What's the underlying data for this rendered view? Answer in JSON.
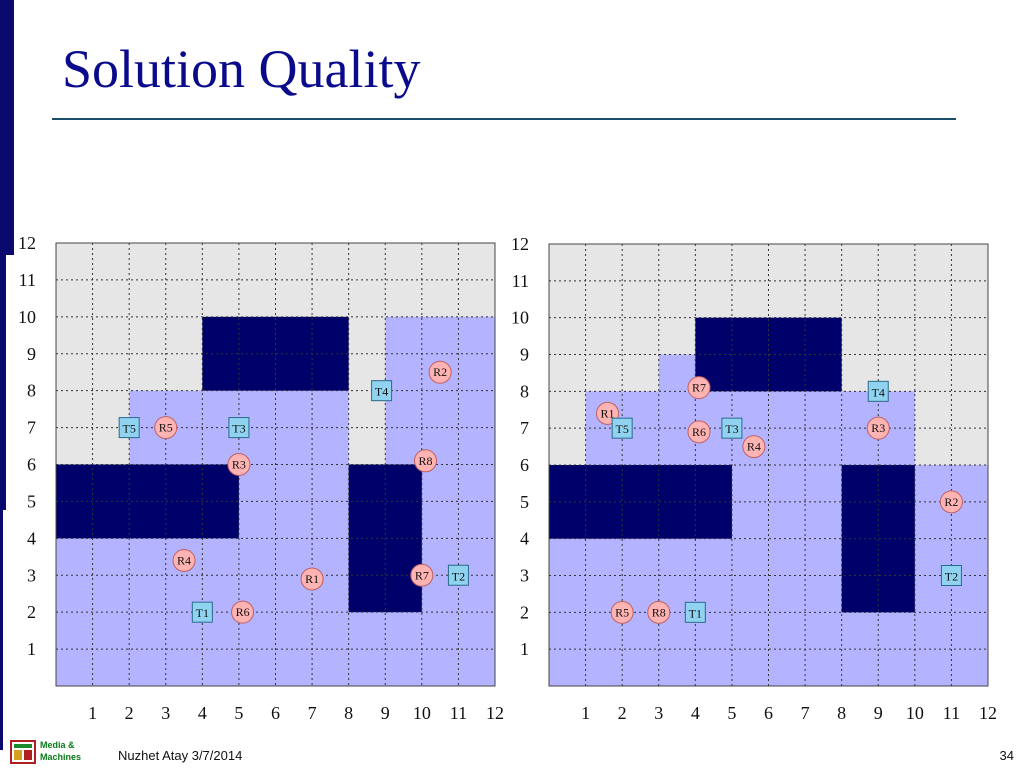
{
  "slide": {
    "title": "Solution Quality",
    "footer_brand_line1": "Media &",
    "footer_brand_line2": "Machines",
    "footer_author": "Nuzhet Atay  3/7/2014",
    "page_number": "34"
  },
  "colors": {
    "background": "#e6e6e6",
    "region": "#b3b3ff",
    "obstacle": "#00006b",
    "robot_fill": "#ffb3b3",
    "robot_stroke": "#c06060",
    "task_fill": "#8fd3f0",
    "task_stroke": "#2a6a8a"
  },
  "axis_labels": [
    "1",
    "2",
    "3",
    "4",
    "5",
    "6",
    "7",
    "8",
    "9",
    "10",
    "11",
    "12"
  ],
  "panels": [
    {
      "id": "left",
      "regions": [
        {
          "x1": 0,
          "y1": 0,
          "x2": 12,
          "y2": 4
        },
        {
          "x1": 0,
          "y1": 4,
          "x2": 8,
          "y2": 6
        },
        {
          "x1": 2,
          "y1": 6,
          "x2": 8,
          "y2": 8
        },
        {
          "x1": 9,
          "y1": 4,
          "x2": 12,
          "y2": 10
        }
      ],
      "obstacles": [
        {
          "x1": 4,
          "y1": 8,
          "x2": 8,
          "y2": 10
        },
        {
          "x1": 0,
          "y1": 4,
          "x2": 5,
          "y2": 6
        },
        {
          "x1": 8,
          "y1": 2,
          "x2": 10,
          "y2": 6
        }
      ],
      "robots": [
        {
          "label": "R1",
          "x": 7,
          "y": 2.9
        },
        {
          "label": "R2",
          "x": 10.5,
          "y": 8.5
        },
        {
          "label": "R3",
          "x": 5,
          "y": 6
        },
        {
          "label": "R4",
          "x": 3.5,
          "y": 3.4
        },
        {
          "label": "R5",
          "x": 3,
          "y": 7
        },
        {
          "label": "R6",
          "x": 5.1,
          "y": 2
        },
        {
          "label": "R7",
          "x": 10,
          "y": 3
        },
        {
          "label": "R8",
          "x": 10.1,
          "y": 6.1
        }
      ],
      "tasks": [
        {
          "label": "T1",
          "x": 4,
          "y": 2
        },
        {
          "label": "T2",
          "x": 11,
          "y": 3
        },
        {
          "label": "T3",
          "x": 5,
          "y": 7
        },
        {
          "label": "T4",
          "x": 8.9,
          "y": 8
        },
        {
          "label": "T5",
          "x": 2,
          "y": 7
        }
      ]
    },
    {
      "id": "right",
      "regions": [
        {
          "x1": 0,
          "y1": 0,
          "x2": 12,
          "y2": 4
        },
        {
          "x1": 1,
          "y1": 4,
          "x2": 8,
          "y2": 8
        },
        {
          "x1": 3,
          "y1": 8,
          "x2": 4,
          "y2": 9
        },
        {
          "x1": 8,
          "y1": 4,
          "x2": 10,
          "y2": 8
        },
        {
          "x1": 10,
          "y1": 0,
          "x2": 12,
          "y2": 6
        }
      ],
      "obstacles": [
        {
          "x1": 4,
          "y1": 8,
          "x2": 8,
          "y2": 10
        },
        {
          "x1": 0,
          "y1": 4,
          "x2": 5,
          "y2": 6
        },
        {
          "x1": 8,
          "y1": 2,
          "x2": 10,
          "y2": 6
        }
      ],
      "robots": [
        {
          "label": "R1",
          "x": 1.6,
          "y": 7.4
        },
        {
          "label": "R2",
          "x": 11,
          "y": 5
        },
        {
          "label": "R3",
          "x": 9,
          "y": 7
        },
        {
          "label": "R4",
          "x": 5.6,
          "y": 6.5
        },
        {
          "label": "R5",
          "x": 2,
          "y": 2
        },
        {
          "label": "R6",
          "x": 4.1,
          "y": 6.9
        },
        {
          "label": "R7",
          "x": 4.1,
          "y": 8.1
        },
        {
          "label": "R8",
          "x": 3,
          "y": 2
        }
      ],
      "tasks": [
        {
          "label": "T1",
          "x": 4,
          "y": 2
        },
        {
          "label": "T2",
          "x": 11,
          "y": 3
        },
        {
          "label": "T3",
          "x": 5,
          "y": 7
        },
        {
          "label": "T4",
          "x": 9,
          "y": 8
        },
        {
          "label": "T5",
          "x": 2,
          "y": 7
        }
      ]
    }
  ]
}
